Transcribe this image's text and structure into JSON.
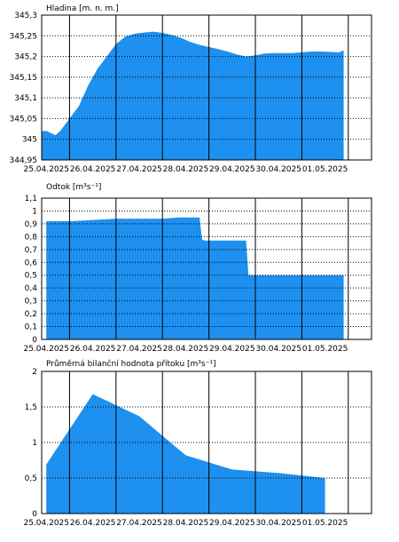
{
  "colors": {
    "fill": "#1e90ef",
    "frame": "#000000",
    "grid": "#000000",
    "background": "#ffffff"
  },
  "chart_data": [
    {
      "type": "area",
      "title": "Hladina [m. n. m.]",
      "x_tick_labels": [
        "25.04.2025",
        "26.04.2025",
        "27.04.2025",
        "28.04.2025",
        "29.04.2025",
        "30.04.2025",
        "01.05.2025"
      ],
      "y_ticks": [
        344.95,
        345,
        345.05,
        345.1,
        345.15,
        345.2,
        345.25,
        345.3
      ],
      "y_tick_labels": [
        "344,95",
        "345",
        "345,05",
        "345,1",
        "345,15",
        "345,2",
        "345,25",
        "345,3"
      ],
      "ylim": [
        344.95,
        345.3
      ],
      "xlim": [
        -0.1,
        7.0
      ],
      "grid": "dotted horizontal, solid vertical",
      "x": [
        -0.1,
        0.0,
        0.2,
        0.3,
        0.5,
        0.7,
        0.9,
        1.1,
        1.3,
        1.5,
        1.7,
        1.9,
        2.1,
        2.3,
        2.5,
        2.7,
        2.9,
        3.1,
        3.3,
        3.5,
        3.7,
        3.9,
        4.1,
        4.3,
        4.5,
        4.7,
        4.9,
        5.1,
        5.3,
        5.5,
        5.7,
        5.9,
        6.1,
        6.3,
        6.4
      ],
      "values": [
        345.02,
        345.02,
        345.01,
        345.02,
        345.05,
        345.08,
        345.13,
        345.17,
        345.2,
        345.23,
        345.248,
        345.255,
        345.258,
        345.26,
        345.257,
        345.252,
        345.245,
        345.235,
        345.228,
        345.223,
        345.218,
        345.212,
        345.205,
        345.2,
        345.203,
        345.207,
        345.208,
        345.208,
        345.208,
        345.21,
        345.212,
        345.212,
        345.211,
        345.21,
        345.215
      ]
    },
    {
      "type": "area",
      "title": "Odtok [m³s⁻¹]",
      "x_tick_labels": [
        "25.04.2025",
        "26.04.2025",
        "27.04.2025",
        "28.04.2025",
        "29.04.2025",
        "30.04.2025",
        "01.05.2025"
      ],
      "y_ticks": [
        0,
        0.1,
        0.2,
        0.3,
        0.4,
        0.5,
        0.6,
        0.7,
        0.8,
        0.9,
        1.0,
        1.1
      ],
      "y_tick_labels": [
        "0",
        "0,1",
        "0,2",
        "0,3",
        "0,4",
        "0,5",
        "0,6",
        "0,7",
        "0,8",
        "0,9",
        "1",
        "1,1"
      ],
      "ylim": [
        0,
        1.1
      ],
      "xlim": [
        -0.1,
        7.0
      ],
      "grid": "dotted horizontal, solid vertical",
      "x": [
        0.0,
        0.5,
        1.0,
        1.5,
        2.0,
        2.5,
        2.85,
        3.0,
        3.3,
        3.35,
        3.4,
        4.3,
        4.35,
        4.4,
        6.4
      ],
      "values": [
        0.92,
        0.92,
        0.93,
        0.94,
        0.94,
        0.94,
        0.95,
        0.95,
        0.95,
        0.78,
        0.77,
        0.77,
        0.5,
        0.5,
        0.5
      ]
    },
    {
      "type": "area",
      "title": "Průměrná bilanční hodnota přítoku [m³s⁻¹]",
      "x_tick_labels": [
        "25.04.2025",
        "26.04.2025",
        "27.04.2025",
        "28.04.2025",
        "29.04.2025",
        "30.04.2025",
        "01.05.2025"
      ],
      "y_ticks": [
        0,
        0.5,
        1,
        1.5,
        2
      ],
      "y_tick_labels": [
        "0",
        "0,5",
        "1",
        "1,5",
        "2"
      ],
      "ylim": [
        0,
        2
      ],
      "xlim": [
        -0.1,
        7.0
      ],
      "grid": "dotted horizontal, solid vertical",
      "x": [
        0,
        1,
        2,
        3,
        4,
        5,
        6
      ],
      "values": [
        0.69,
        1.68,
        1.37,
        0.82,
        0.62,
        0.57,
        0.5
      ]
    }
  ]
}
